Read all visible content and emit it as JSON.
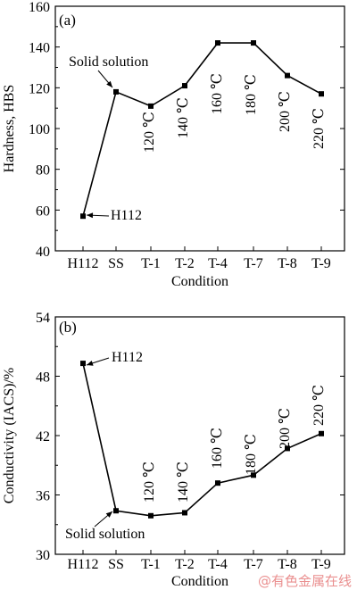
{
  "chart_data": [
    {
      "type": "line",
      "title": "(a)",
      "xlabel": "Condition",
      "ylabel": "Hardness, HBS",
      "ylim": [
        40,
        160
      ],
      "yticks": [
        40,
        60,
        80,
        100,
        120,
        140,
        160
      ],
      "categories": [
        "H112",
        "SS",
        "T-1",
        "T-2",
        "T-4",
        "T-7",
        "T-8",
        "T-9"
      ],
      "series": [
        {
          "values": [
            57,
            118,
            111,
            121,
            142,
            142,
            126,
            117
          ]
        }
      ],
      "point_labels": [
        "",
        "",
        "120 ℃",
        "140 ℃",
        "160 ℃",
        "180 ℃",
        "200 ℃",
        "220 ℃"
      ],
      "annotations": [
        "Solid solution",
        "H112"
      ],
      "grid": false
    },
    {
      "type": "line",
      "title": "(b)",
      "xlabel": "Condition",
      "ylabel": "Conductivity (IACS)/%",
      "ylim": [
        30,
        54
      ],
      "yticks": [
        30,
        36,
        42,
        48,
        54
      ],
      "categories": [
        "H112",
        "SS",
        "T-1",
        "T-2",
        "T-4",
        "T-7",
        "T-8",
        "T-9"
      ],
      "series": [
        {
          "values": [
            49.3,
            34.4,
            33.9,
            34.2,
            37.2,
            38.0,
            40.7,
            42.2
          ]
        }
      ],
      "point_labels": [
        "",
        "",
        "120 ℃",
        "140 ℃",
        "160 ℃",
        "180 ℃",
        "200 ℃",
        "220 ℃"
      ],
      "annotations": [
        "H112",
        "Solid solution"
      ],
      "grid": false
    }
  ],
  "watermark": "@有色金属在线",
  "colors": {
    "ink": "#000000",
    "watermark": "#e36a6a"
  }
}
